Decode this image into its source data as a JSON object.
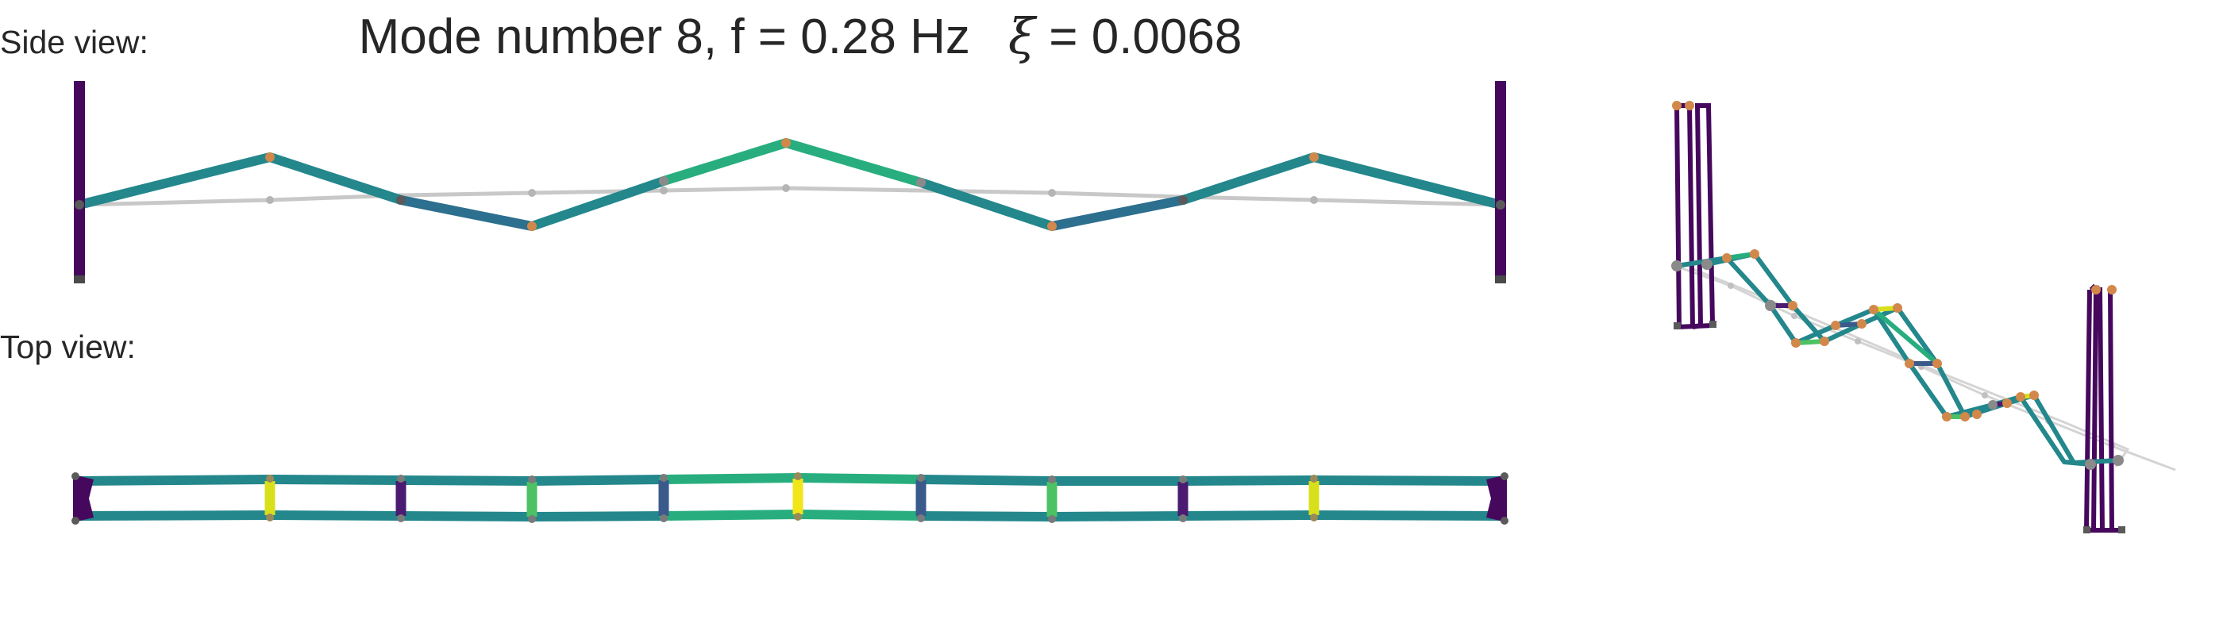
{
  "title": {
    "mode_text": "Mode number 8, f = 0.28 Hz",
    "damping_symbol": "ξ",
    "damping_text": "= 0.0068"
  },
  "labels": {
    "side_view": "Side view:",
    "top_view": "Top view:"
  },
  "colors": {
    "tower": "#45085d",
    "tower_dark": "#2f0f48",
    "undeformed": "#c8c8c8",
    "node_orange": "#d2884a",
    "node_gray": "#8a8a8a",
    "node_gray_dark": "#5a5a5a",
    "viridis_purple": "#4a1b70",
    "viridis_blue": "#3a5a8c",
    "viridis_teal": "#23878c",
    "viridis_green": "#28ae7e",
    "viridis_lightgreen": "#4cc264",
    "viridis_yellow": "#d8e01c"
  },
  "diagram": {
    "mode_number": 8,
    "frequency_hz": 0.28,
    "damping_ratio": 0.0068,
    "panel_count": 11,
    "side_view_segment_colors": [
      "teal",
      "teal",
      "blue",
      "teal",
      "green",
      "green",
      "teal",
      "blue",
      "teal",
      "teal"
    ],
    "top_view_chord_colors": [
      "teal",
      "teal",
      "teal",
      "teal",
      "green",
      "green",
      "teal",
      "teal",
      "teal",
      "teal",
      "teal"
    ],
    "top_view_crossbeam_colors": [
      "yellow",
      "purple",
      "lightgreen",
      "blue",
      "yellow",
      "blue",
      "lightgreen",
      "purple",
      "yellow"
    ]
  }
}
